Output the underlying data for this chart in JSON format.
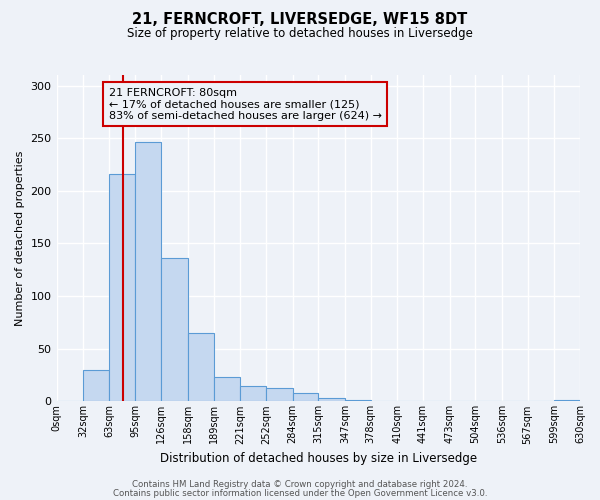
{
  "title": "21, FERNCROFT, LIVERSEDGE, WF15 8DT",
  "subtitle": "Size of property relative to detached houses in Liversedge",
  "bar_heights": [
    0,
    30,
    216,
    246,
    136,
    65,
    23,
    15,
    13,
    8,
    3,
    1,
    0,
    0,
    0,
    0,
    0,
    0,
    0,
    1,
    0
  ],
  "bin_edges": [
    0,
    32,
    63,
    95,
    126,
    158,
    189,
    221,
    252,
    284,
    315,
    347,
    378,
    410,
    441,
    473,
    504,
    536,
    567,
    599,
    630
  ],
  "bin_labels": [
    "0sqm",
    "32sqm",
    "63sqm",
    "95sqm",
    "126sqm",
    "158sqm",
    "189sqm",
    "221sqm",
    "252sqm",
    "284sqm",
    "315sqm",
    "347sqm",
    "378sqm",
    "410sqm",
    "441sqm",
    "473sqm",
    "504sqm",
    "536sqm",
    "567sqm",
    "599sqm",
    "630sqm"
  ],
  "bar_color": "#c5d8f0",
  "bar_edge_color": "#5b9bd5",
  "property_line_x": 80,
  "property_line_color": "#cc0000",
  "ylabel": "Number of detached properties",
  "xlabel": "Distribution of detached houses by size in Liversedge",
  "ylim": [
    0,
    310
  ],
  "yticks": [
    0,
    50,
    100,
    150,
    200,
    250,
    300
  ],
  "annotation_title": "21 FERNCROFT: 80sqm",
  "annotation_line1": "← 17% of detached houses are smaller (125)",
  "annotation_line2": "83% of semi-detached houses are larger (624) →",
  "annotation_box_color": "#cc0000",
  "footer_line1": "Contains HM Land Registry data © Crown copyright and database right 2024.",
  "footer_line2": "Contains public sector information licensed under the Open Government Licence v3.0.",
  "background_color": "#eef2f8",
  "grid_color": "#ffffff"
}
